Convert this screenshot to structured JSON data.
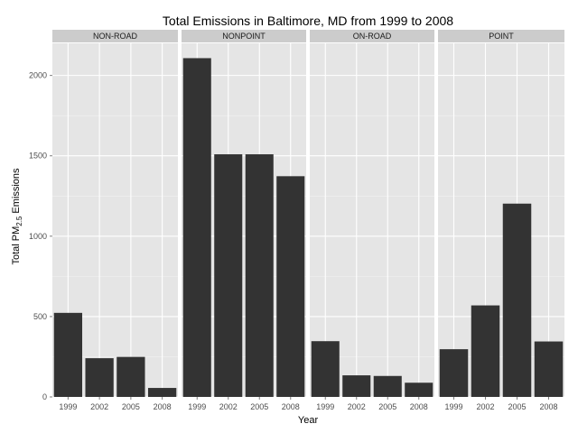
{
  "chart_data": {
    "type": "bar",
    "title": "Total Emissions in Baltimore, MD from 1999 to 2008",
    "xlabel": "Year",
    "ylabel": {
      "prefix": "Total PM",
      "subscript": "2.5",
      "suffix": " Emissions"
    },
    "ylim": [
      0,
      2200
    ],
    "yticks": [
      0,
      500,
      1000,
      1500,
      2000
    ],
    "ytick_labels": [
      "0",
      "500",
      "1000",
      "1500",
      "2000"
    ],
    "categories": [
      "1999",
      "2002",
      "2005",
      "2008"
    ],
    "facets": [
      {
        "name": "NON-ROAD",
        "values": [
          522.9,
          240.8,
          248.9,
          55.8
        ]
      },
      {
        "name": "NONPOINT",
        "values": [
          2107.6,
          1509.5,
          1509.5,
          1373.2
        ]
      },
      {
        "name": "ON-ROAD",
        "values": [
          346.8,
          134.3,
          130.4,
          88.3
        ]
      },
      {
        "name": "POINT",
        "values": [
          296.8,
          569.3,
          1202.5,
          344.98
        ]
      }
    ],
    "bar_color": "#333333",
    "panel_bg": "#e5e5e5",
    "strip_bg": "#cccccc",
    "grid_color": "#ffffff"
  }
}
